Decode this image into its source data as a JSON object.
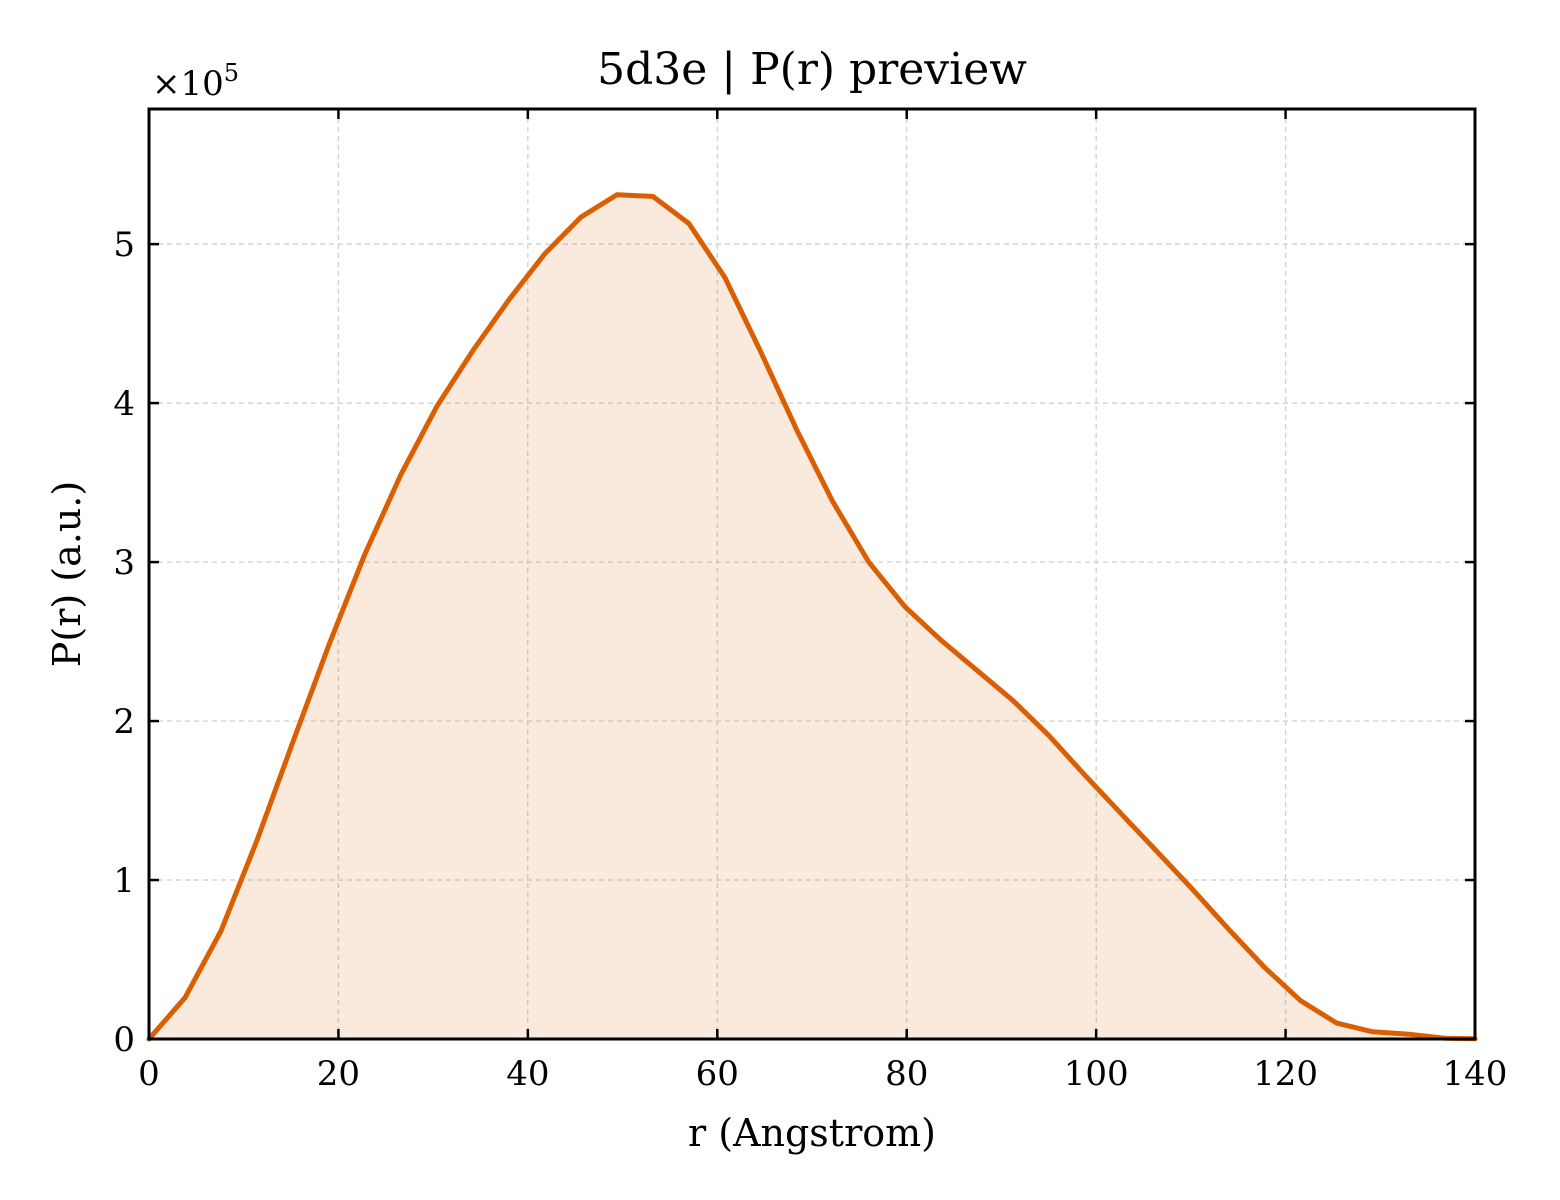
{
  "chart_data": {
    "type": "area",
    "title": "5d3e | P(r) preview",
    "xlabel": "r (Angstrom)",
    "ylabel": "P(r) (a.u.)",
    "y_multiplier_label": "×10",
    "y_multiplier_exponent": "5",
    "xlim": [
      0,
      140
    ],
    "ylim": [
      0,
      5.85
    ],
    "y_scale_factor": 100000,
    "x_ticks": [
      0,
      20,
      40,
      60,
      80,
      100,
      120,
      140
    ],
    "y_ticks": [
      0,
      1,
      2,
      3,
      4,
      5
    ],
    "grid": true,
    "legend": "none",
    "colors": {
      "line": "#d95f02",
      "fill": "#d95f02",
      "fill_opacity": 0.13,
      "grid": "#cccccc"
    },
    "series": [
      {
        "x": [
          0,
          3.8,
          7.6,
          11.4,
          15.2,
          19.0,
          22.8,
          26.6,
          30.4,
          34.2,
          38.0,
          41.8,
          45.6,
          49.4,
          53.2,
          57.0,
          60.8,
          64.6,
          68.4,
          72.2,
          76.0,
          79.8,
          83.6,
          87.4,
          91.2,
          95.0,
          98.8,
          102.6,
          106.4,
          110.2,
          114.0,
          117.8,
          121.6,
          125.4,
          129.2,
          133.0,
          136.8,
          140.0
        ],
        "y": [
          0.0,
          0.26,
          0.68,
          1.25,
          1.87,
          2.48,
          3.05,
          3.55,
          3.98,
          4.33,
          4.65,
          4.94,
          5.17,
          5.31,
          5.3,
          5.13,
          4.79,
          4.32,
          3.83,
          3.38,
          3.0,
          2.72,
          2.51,
          2.32,
          2.13,
          1.91,
          1.66,
          1.42,
          1.18,
          0.94,
          0.69,
          0.45,
          0.24,
          0.1,
          0.045,
          0.03,
          0.005,
          0.002
        ]
      }
    ]
  }
}
